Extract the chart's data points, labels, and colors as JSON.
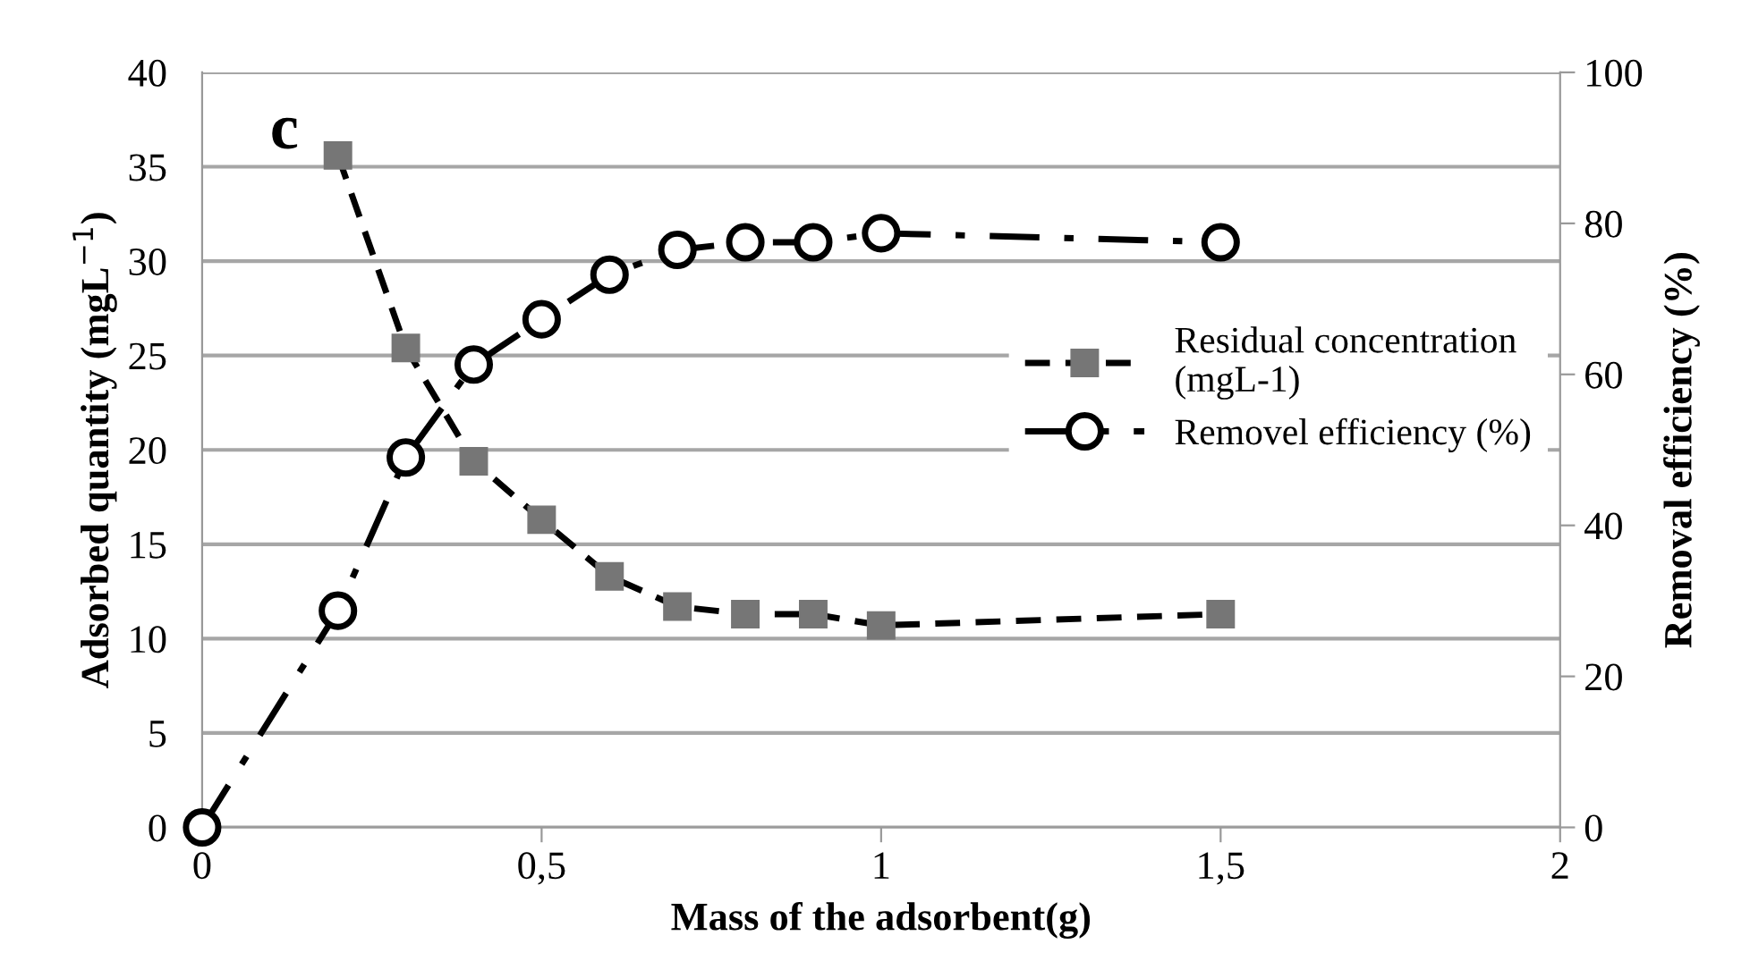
{
  "chart_data": {
    "type": "line",
    "xlabel": "Mass of the adsorbent(g)",
    "ylabel": "Adsorbed quantity (mgL$^{−1}$)",
    "y2label": "Removal efficiency (%)",
    "annotations": [
      "c"
    ],
    "x": [
      0.2,
      0.3,
      0.4,
      0.5,
      0.6,
      0.7,
      0.8,
      0.9,
      1.0,
      1.5
    ],
    "series": [
      {
        "name": "Residual concentration\n(mgL-1)",
        "color": "#767676",
        "marker": "square",
        "line_style": "dashed",
        "values": [
          35.6,
          25.4,
          19.4,
          16.3,
          13.3,
          11.7,
          11.3,
          11.3,
          10.7,
          11.3
        ]
      },
      {
        "name": "Removel efficiency (%)",
        "color": "#000000",
        "marker": "circle",
        "line_style": "dashdot",
        "axis": "y2",
        "x": [
          0,
          0.2,
          0.3,
          0.4,
          0.5,
          0.6,
          0.7,
          0.8,
          0.9,
          1.0,
          1.5
        ],
        "values": [
          0,
          28.7,
          49,
          61.3,
          67.3,
          73.2,
          76.5,
          77.5,
          77.5,
          78.7,
          77.5
        ]
      }
    ],
    "xlim": [
      0,
      2
    ],
    "xticks": [
      0,
      {
        "value": 0.5,
        "label": "0,5"
      },
      1,
      {
        "value": 1.5,
        "label": "1,5"
      },
      2
    ],
    "ylim": [
      0,
      40
    ],
    "yticks": [
      0,
      5,
      10,
      15,
      20,
      25,
      30,
      35,
      40
    ],
    "y2lim": [
      0,
      100
    ],
    "y2ticks": [
      0,
      20,
      40,
      60,
      80,
      100
    ],
    "grid": "y",
    "legend": "right"
  }
}
